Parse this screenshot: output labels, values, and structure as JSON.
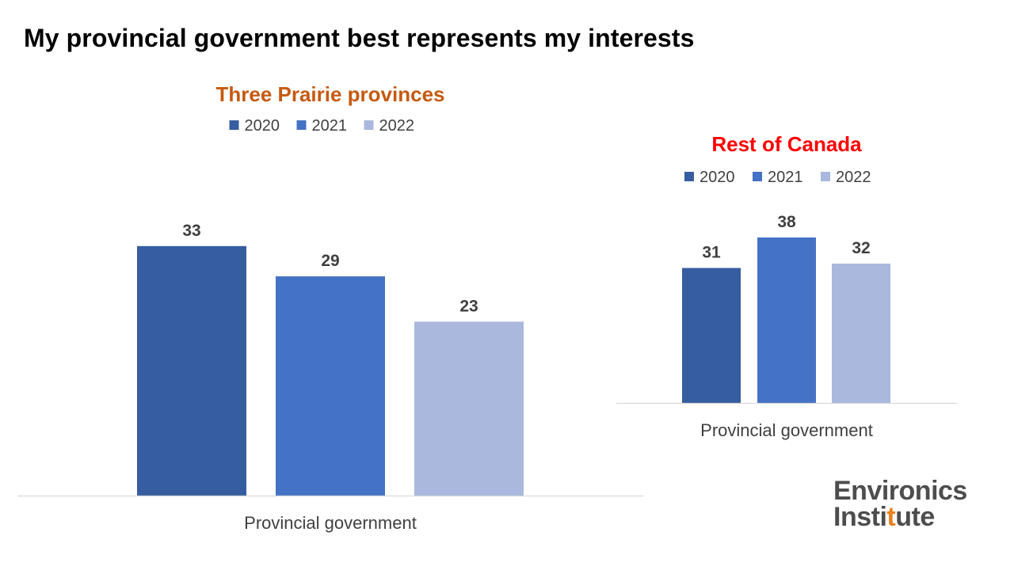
{
  "title": "My provincial government best represents my interests",
  "logo": {
    "line1": "Environics",
    "line2_before": "Insti",
    "line2_accent": "t",
    "line2_after": "ute"
  },
  "colors": {
    "series_2020": "#365d9f",
    "series_2021": "#4472c4",
    "series_2022": "#a9b8dc",
    "prairie_title": "#c55a11",
    "rest_title": "#ff0000",
    "text": "#404040",
    "axis": "#d9d9d9",
    "logo_accent": "#e8821e"
  },
  "chart_data": [
    {
      "type": "bar",
      "title": "Three Prairie provinces",
      "categories": [
        "Provincial government"
      ],
      "series": [
        {
          "name": "2020",
          "values": [
            33
          ]
        },
        {
          "name": "2021",
          "values": [
            29
          ]
        },
        {
          "name": "2022",
          "values": [
            23
          ]
        }
      ],
      "legend": "top",
      "grid": false,
      "ylim": [
        0,
        40
      ]
    },
    {
      "type": "bar",
      "title": "Rest of Canada",
      "categories": [
        "Provincial government"
      ],
      "series": [
        {
          "name": "2020",
          "values": [
            31
          ]
        },
        {
          "name": "2021",
          "values": [
            38
          ]
        },
        {
          "name": "2022",
          "values": [
            32
          ]
        }
      ],
      "legend": "top",
      "grid": false,
      "ylim": [
        0,
        40
      ]
    }
  ]
}
